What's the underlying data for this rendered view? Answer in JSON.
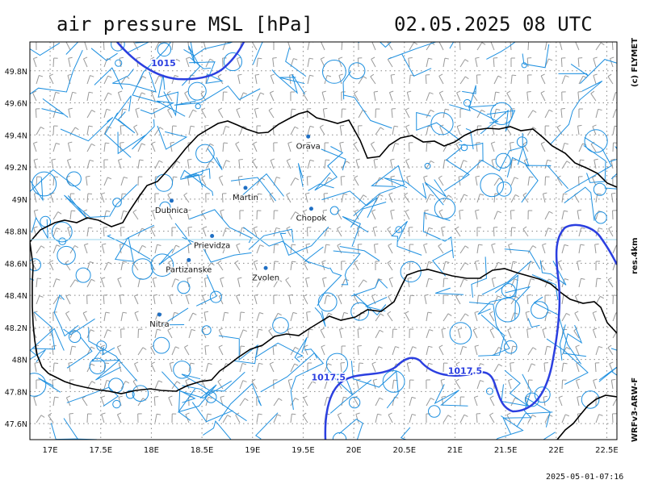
{
  "header": {
    "title": "air pressure MSL [hPa]",
    "datetime": "02.05.2025  08 UTC"
  },
  "side_labels": {
    "copyright": "(c) FLYMET",
    "resolution": "res.4km",
    "model": "WRFv3-ARW-F"
  },
  "footer": {
    "run_time": "2025-05-01-07:16"
  },
  "map": {
    "lon_range": [
      16.8,
      22.6
    ],
    "lat_range": [
      47.5,
      49.98
    ],
    "x_ticks": [
      "17E",
      "17.5E",
      "18E",
      "18.5E",
      "19E",
      "19.5E",
      "20E",
      "20.5E",
      "21E",
      "21.5E",
      "22E",
      "22.5E"
    ],
    "y_ticks": [
      "47.6N",
      "47.8N",
      "48N",
      "48.2N",
      "48.4N",
      "48.6N",
      "48.8N",
      "49N",
      "49.2N",
      "49.4N",
      "49.6N",
      "49.8N"
    ],
    "colors": {
      "border": "#000000",
      "isobar": "#2b3fe0",
      "rivers": "#1e90e0",
      "wind": "#999999",
      "grid": "#888888"
    },
    "cities": [
      {
        "name": "Orava",
        "lon": 19.55,
        "lat": 49.39
      },
      {
        "name": "Dubnica",
        "lon": 18.2,
        "lat": 48.99
      },
      {
        "name": "Martin",
        "lon": 18.93,
        "lat": 49.07
      },
      {
        "name": "Chopok",
        "lon": 19.58,
        "lat": 48.94
      },
      {
        "name": "Prievidza",
        "lon": 18.6,
        "lat": 48.77
      },
      {
        "name": "Partizanske",
        "lon": 18.37,
        "lat": 48.62
      },
      {
        "name": "Zvolen",
        "lon": 19.13,
        "lat": 48.57
      },
      {
        "name": "Nitra",
        "lon": 18.08,
        "lat": 48.28
      }
    ],
    "isobar_labels": [
      {
        "text": "1015",
        "lon": 18.12,
        "lat": 49.83
      },
      {
        "text": "1017.5",
        "lon": 19.75,
        "lat": 47.87
      },
      {
        "text": "1017.5",
        "lon": 21.1,
        "lat": 47.91
      }
    ]
  }
}
